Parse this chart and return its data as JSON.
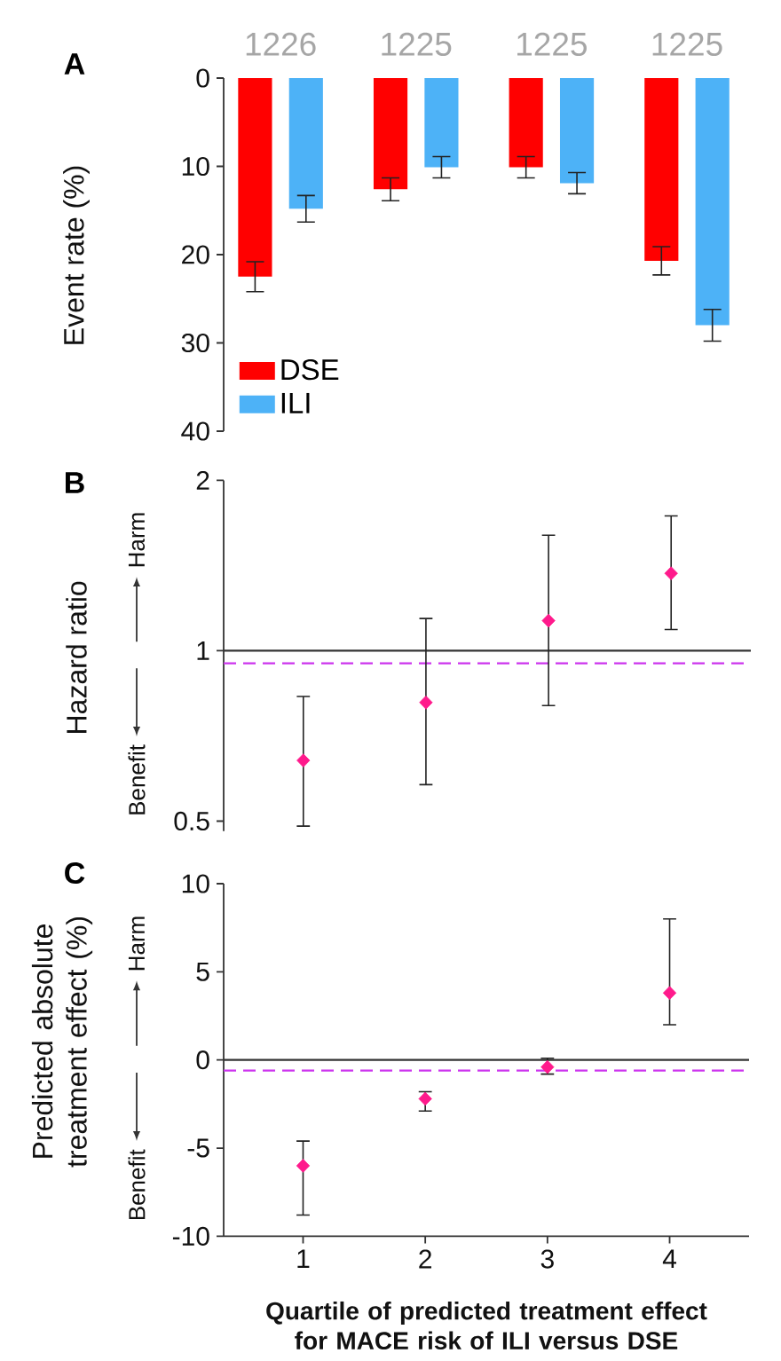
{
  "chart_data": [
    {
      "type": "bar",
      "title": "A",
      "ylabel": "Event rate (%)",
      "categories": [
        "1226",
        "1225",
        "1225",
        "1225"
      ],
      "series": [
        {
          "name": "DSE",
          "color": "#ff0000",
          "values": [
            22.5,
            12.6,
            10.1,
            20.7
          ],
          "errors": [
            1.7,
            1.3,
            1.2,
            1.6
          ]
        },
        {
          "name": "ILI",
          "color": "#4db2f7",
          "values": [
            14.8,
            10.1,
            11.9,
            28.0
          ],
          "errors": [
            1.5,
            1.2,
            1.2,
            1.8
          ]
        }
      ],
      "ylim": [
        40,
        0
      ],
      "yticks": [
        0,
        10,
        20,
        30,
        40
      ],
      "legend": "bottom left"
    },
    {
      "type": "scatter",
      "title": "B",
      "ylabel": "Hazard ratio",
      "annotations": [
        "Harm",
        "Benefit"
      ],
      "x": [
        1,
        2,
        3,
        4
      ],
      "series": [
        {
          "color": "#ff1a8c",
          "values": [
            0.64,
            0.81,
            1.13,
            1.37
          ],
          "errors": [
            [
              0.49,
              0.83
            ],
            [
              0.58,
              1.14
            ],
            [
              0.8,
              1.6
            ],
            [
              1.09,
              1.73
            ]
          ]
        }
      ],
      "xlim": [
        0.35,
        4.65
      ],
      "ylim": [
        0.48,
        2
      ],
      "yticks": [
        0.5,
        1,
        2
      ],
      "log": true,
      "marker": "diamond",
      "tick_labels": "y",
      "ref_lines": [
        {
          "axis": "y",
          "value": 1,
          "color": "#333333",
          "line_style": "solid"
        },
        {
          "axis": "y",
          "value": 0.95,
          "color": "#cc33ee",
          "line_style": "dashed"
        }
      ]
    },
    {
      "type": "scatter",
      "title": "C",
      "xlabel": "Quartile of predicted treatment effect for MACE risk of ILI versus DSE",
      "ylabel": "Predicted absolute treatment effect (%)",
      "annotations": [
        "Harm",
        "Benefit"
      ],
      "x": [
        1,
        2,
        3,
        4
      ],
      "series": [
        {
          "color": "#ff1a8c",
          "values": [
            -6.0,
            -2.2,
            -0.4,
            3.8
          ],
          "errors": [
            [
              -8.8,
              -4.6
            ],
            [
              -2.9,
              -1.8
            ],
            [
              -0.8,
              0.1
            ],
            [
              2.0,
              8.0
            ]
          ]
        }
      ],
      "xlim": [
        0.35,
        4.65
      ],
      "xticks": [
        1,
        2,
        3,
        4
      ],
      "ylim": [
        -10,
        10
      ],
      "yticks": [
        -10,
        -5,
        0,
        5,
        10
      ],
      "marker": "diamond",
      "ref_lines": [
        {
          "axis": "y",
          "value": 0,
          "color": "#333333",
          "line_style": "solid"
        },
        {
          "axis": "y",
          "value": -0.6,
          "color": "#cc33ee",
          "line_style": "dashed"
        }
      ]
    }
  ]
}
